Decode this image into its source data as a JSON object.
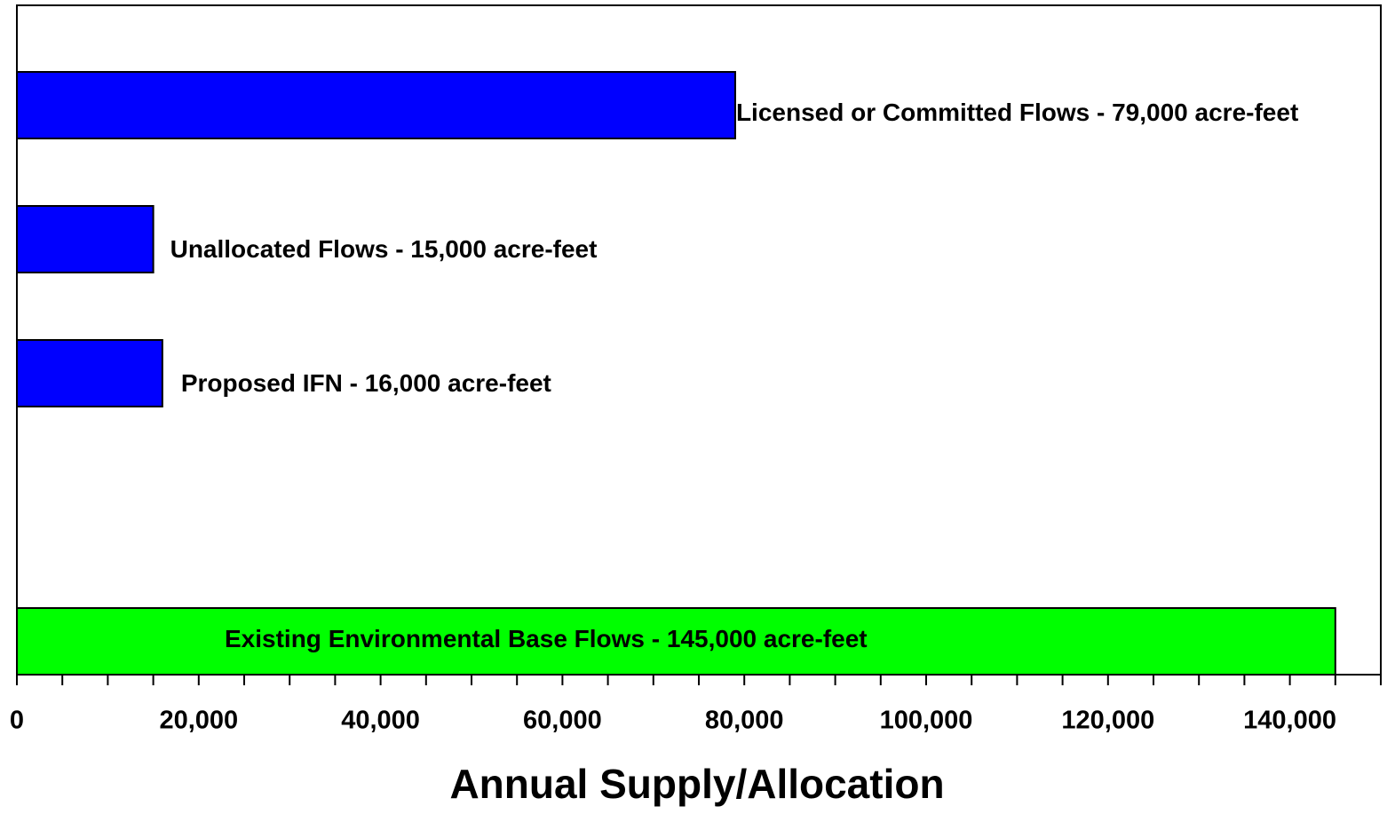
{
  "chart_data": {
    "type": "bar",
    "orientation": "horizontal",
    "xlabel": "Annual Supply/Allocation",
    "categories": [
      null,
      null,
      null,
      null,
      null
    ],
    "values": [
      79000,
      15000,
      16000,
      null,
      145000
    ],
    "value_labels": [
      "Licensed or Committed Flows - 79,000 acre-feet",
      "Unallocated Flows  -  15,000 acre-feet",
      "Proposed IFN  -  16,000 acre-feet",
      null,
      "Existing Environmental Base Flows  -  145,000 acre-feet"
    ],
    "colors": [
      "#0000ff",
      "#0000ff",
      "#0000ff",
      null,
      "#00ff00"
    ],
    "xlim": [
      0,
      150000
    ],
    "xticks": [
      0,
      {
        "value": 20000,
        "label": "20,000"
      },
      {
        "value": 40000,
        "label": "40,000"
      },
      {
        "value": 60000,
        "label": "60,000"
      },
      {
        "value": 80000,
        "label": "80,000"
      },
      {
        "value": 100000,
        "label": "100,000"
      },
      {
        "value": 120000,
        "label": "120,000"
      },
      {
        "value": 140000,
        "label": "140,000"
      }
    ],
    "minor_xticks": [
      5000,
      10000,
      15000,
      25000,
      30000,
      35000,
      45000,
      50000,
      55000,
      65000,
      70000,
      75000,
      85000,
      90000,
      95000,
      105000,
      110000,
      115000,
      125000,
      130000,
      135000,
      145000,
      150000
    ],
    "grid": false
  }
}
